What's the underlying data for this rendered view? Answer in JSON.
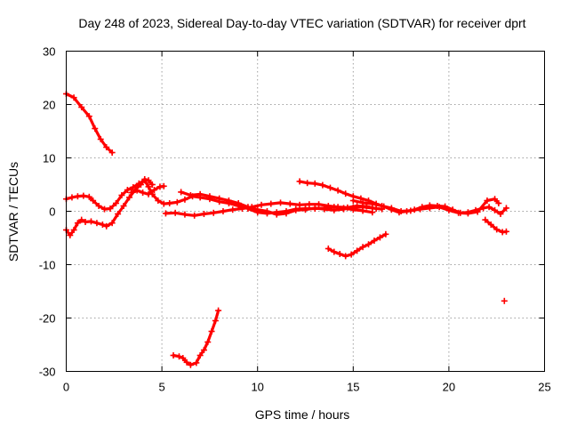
{
  "chart_data": {
    "type": "scatter",
    "title": "Day 248 of 2023, Sidereal Day-to-day VTEC variation (SDTVAR) for receiver dprt",
    "xlabel": "GPS time / hours",
    "ylabel": "SDTVAR / TECUs",
    "xlim": [
      0,
      25
    ],
    "ylim": [
      -30,
      30
    ],
    "xticks": [
      "0",
      "5",
      "10",
      "15",
      "20",
      "25"
    ],
    "yticks": [
      "30",
      "20",
      "10",
      "0",
      "-10",
      "-20",
      "-30"
    ],
    "grid": true,
    "marker_color": "#ff0000",
    "series": [
      {
        "name": "arc-1",
        "points": [
          [
            0,
            22
          ],
          [
            0.4,
            21.3
          ],
          [
            0.8,
            19.5
          ],
          [
            1.2,
            17.8
          ],
          [
            1.5,
            15.5
          ],
          [
            1.8,
            13.5
          ],
          [
            2.1,
            12
          ],
          [
            2.4,
            11
          ]
        ]
      },
      {
        "name": "arc-2",
        "points": [
          [
            0,
            -3.5
          ],
          [
            0.2,
            -4.5
          ],
          [
            0.4,
            -3.5
          ],
          [
            0.6,
            -2.2
          ],
          [
            0.8,
            -1.6
          ],
          [
            1.0,
            -2.0
          ],
          [
            1.3,
            -1.9
          ],
          [
            1.6,
            -2.2
          ],
          [
            1.9,
            -2.5
          ],
          [
            2.1,
            -2.8
          ],
          [
            2.4,
            -2.2
          ],
          [
            2.7,
            -0.5
          ],
          [
            3.0,
            1.0
          ],
          [
            3.3,
            2.6
          ],
          [
            3.6,
            4.0
          ],
          [
            3.9,
            5.0
          ],
          [
            4.1,
            6.0
          ],
          [
            4.3,
            5.8
          ],
          [
            4.5,
            5.0
          ]
        ]
      },
      {
        "name": "arc-3",
        "points": [
          [
            0,
            2.3
          ],
          [
            0.3,
            2.6
          ],
          [
            0.6,
            2.8
          ],
          [
            0.9,
            2.9
          ],
          [
            1.2,
            2.7
          ],
          [
            1.4,
            2.0
          ],
          [
            1.7,
            1.0
          ],
          [
            2.0,
            0.4
          ],
          [
            2.3,
            0.5
          ],
          [
            2.6,
            1.5
          ],
          [
            2.9,
            3.0
          ],
          [
            3.2,
            4.0
          ],
          [
            3.5,
            4.5
          ],
          [
            3.8,
            5.2
          ],
          [
            4.1,
            5.8
          ],
          [
            4.3,
            4.6
          ],
          [
            4.5,
            3.2
          ],
          [
            4.8,
            2.0
          ],
          [
            5.1,
            1.4
          ],
          [
            5.4,
            1.5
          ],
          [
            5.8,
            1.7
          ],
          [
            6.2,
            2.2
          ],
          [
            6.6,
            2.8
          ],
          [
            7.0,
            2.6
          ],
          [
            7.5,
            2.3
          ],
          [
            8.0,
            1.8
          ],
          [
            8.5,
            1.5
          ],
          [
            9.0,
            1.0
          ],
          [
            9.5,
            0.5
          ],
          [
            10.0,
            -0.2
          ],
          [
            10.5,
            -0.4
          ],
          [
            11.0,
            -0.2
          ],
          [
            11.5,
            0.0
          ],
          [
            12.0,
            0.4
          ],
          [
            12.5,
            0.5
          ],
          [
            13.0,
            0.5
          ],
          [
            13.5,
            0.6
          ],
          [
            14.0,
            0.8
          ],
          [
            14.5,
            0.6
          ],
          [
            15.0,
            0.3
          ],
          [
            15.5,
            0.1
          ],
          [
            16.0,
            -0.2
          ]
        ]
      },
      {
        "name": "arc-4",
        "points": [
          [
            3.4,
            3.5
          ],
          [
            3.7,
            3.9
          ],
          [
            4.0,
            3.5
          ],
          [
            4.3,
            3.2
          ],
          [
            4.6,
            4.0
          ],
          [
            4.9,
            4.6
          ],
          [
            5.1,
            4.7
          ]
        ]
      },
      {
        "name": "arc-5",
        "points": [
          [
            5.2,
            -0.4
          ],
          [
            5.7,
            -0.3
          ],
          [
            6.2,
            -0.6
          ],
          [
            6.7,
            -0.8
          ],
          [
            7.2,
            -0.5
          ],
          [
            7.7,
            -0.3
          ],
          [
            8.2,
            0.0
          ],
          [
            8.7,
            0.3
          ],
          [
            9.2,
            0.5
          ],
          [
            9.7,
            0.8
          ],
          [
            10.2,
            1.2
          ],
          [
            10.7,
            1.4
          ],
          [
            11.2,
            1.6
          ],
          [
            11.7,
            1.4
          ],
          [
            12.2,
            1.2
          ],
          [
            12.7,
            1.3
          ],
          [
            13.2,
            1.3
          ],
          [
            13.7,
            1.0
          ],
          [
            14.2,
            0.8
          ],
          [
            14.7,
            0.7
          ],
          [
            15.2,
            1.0
          ],
          [
            15.7,
            0.9
          ],
          [
            16.2,
            0.5
          ]
        ]
      },
      {
        "name": "arc-6",
        "points": [
          [
            6.0,
            3.6
          ],
          [
            6.5,
            3.0
          ],
          [
            7.0,
            3.2
          ],
          [
            7.5,
            2.8
          ],
          [
            8.0,
            2.4
          ],
          [
            8.5,
            2.0
          ],
          [
            9.0,
            1.5
          ],
          [
            9.5,
            0.8
          ],
          [
            10.0,
            0.3
          ],
          [
            10.5,
            0.0
          ],
          [
            11.0,
            -0.6
          ],
          [
            11.5,
            -0.4
          ],
          [
            12.0,
            0.2
          ],
          [
            12.5,
            0.3
          ],
          [
            13.0,
            0.6
          ],
          [
            13.5,
            0.4
          ],
          [
            14.0,
            0.2
          ],
          [
            14.5,
            0.4
          ],
          [
            15.0,
            0.7
          ],
          [
            15.5,
            0.8
          ],
          [
            16.0,
            0.6
          ],
          [
            16.5,
            0.4
          ]
        ]
      },
      {
        "name": "arc-7",
        "points": [
          [
            12.2,
            5.6
          ],
          [
            12.6,
            5.3
          ],
          [
            13.0,
            5.2
          ],
          [
            13.4,
            4.9
          ],
          [
            13.8,
            4.4
          ],
          [
            14.2,
            3.9
          ],
          [
            14.6,
            3.3
          ],
          [
            15.0,
            2.8
          ],
          [
            15.4,
            2.4
          ],
          [
            15.8,
            2.0
          ],
          [
            16.2,
            1.4
          ],
          [
            16.6,
            0.9
          ],
          [
            17.0,
            0.3
          ],
          [
            17.4,
            -0.2
          ],
          [
            17.8,
            0.0
          ],
          [
            18.2,
            0.3
          ],
          [
            18.6,
            0.8
          ],
          [
            19.0,
            1.1
          ],
          [
            19.4,
            1.0
          ],
          [
            19.8,
            0.9
          ],
          [
            20.2,
            0.3
          ],
          [
            20.6,
            -0.3
          ],
          [
            21.0,
            -0.2
          ],
          [
            21.4,
            0.2
          ],
          [
            21.8,
            0.6
          ],
          [
            22.1,
            0.8
          ],
          [
            22.4,
            0.2
          ],
          [
            22.7,
            -0.5
          ],
          [
            23.0,
            0.6
          ]
        ]
      },
      {
        "name": "arc-8",
        "points": [
          [
            15.0,
            2.0
          ],
          [
            15.5,
            1.6
          ],
          [
            16.0,
            1.4
          ],
          [
            16.5,
            1.0
          ],
          [
            17.0,
            0.6
          ],
          [
            17.5,
            0.0
          ],
          [
            18.0,
            0.1
          ],
          [
            18.5,
            0.4
          ],
          [
            19.0,
            0.6
          ],
          [
            19.5,
            0.8
          ],
          [
            20.0,
            0.2
          ],
          [
            20.5,
            -0.3
          ],
          [
            21.0,
            -0.4
          ],
          [
            21.5,
            -0.1
          ],
          [
            22.0,
            2.0
          ],
          [
            22.4,
            2.3
          ],
          [
            22.6,
            1.5
          ]
        ]
      },
      {
        "name": "arc-9",
        "points": [
          [
            13.7,
            -7.0
          ],
          [
            14.0,
            -7.6
          ],
          [
            14.3,
            -8.0
          ],
          [
            14.6,
            -8.4
          ],
          [
            14.9,
            -8.1
          ],
          [
            15.2,
            -7.4
          ],
          [
            15.5,
            -6.7
          ],
          [
            15.8,
            -6.2
          ],
          [
            16.1,
            -5.5
          ],
          [
            16.4,
            -4.9
          ],
          [
            16.7,
            -4.3
          ]
        ]
      },
      {
        "name": "arc-10",
        "points": [
          [
            5.6,
            -27.0
          ],
          [
            5.9,
            -27.2
          ],
          [
            6.1,
            -27.5
          ],
          [
            6.3,
            -28.3
          ],
          [
            6.5,
            -28.8
          ],
          [
            6.8,
            -28.4
          ],
          [
            7.0,
            -27.0
          ],
          [
            7.2,
            -26.0
          ],
          [
            7.4,
            -24.5
          ],
          [
            7.6,
            -22.5
          ],
          [
            7.8,
            -20.5
          ],
          [
            7.95,
            -18.6
          ]
        ]
      },
      {
        "name": "arc-11",
        "points": [
          [
            21.9,
            -1.6
          ],
          [
            22.2,
            -2.5
          ],
          [
            22.5,
            -3.4
          ],
          [
            22.8,
            -3.9
          ],
          [
            23.0,
            -3.8
          ]
        ]
      },
      {
        "name": "isolated-point",
        "points": [
          [
            22.9,
            -16.8
          ]
        ]
      }
    ]
  }
}
